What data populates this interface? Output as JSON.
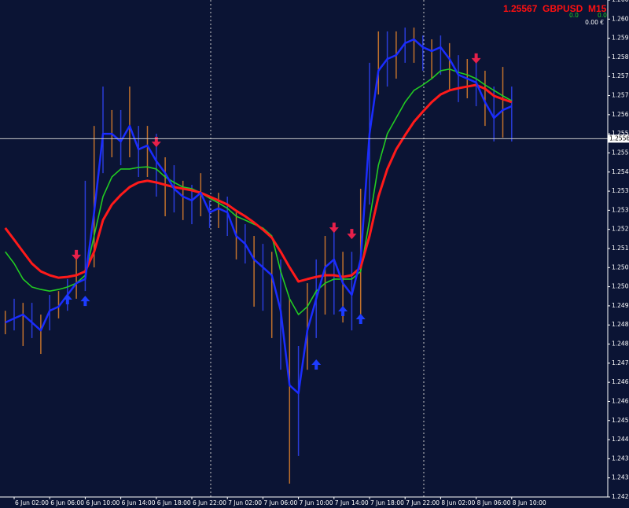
{
  "header": {
    "price": "1.25567",
    "symbol": "GBPUSD",
    "timeframe": "M15",
    "values": [
      "0.0",
      "0.0"
    ],
    "balance": "0.00 €"
  },
  "chart_data": {
    "type": "line",
    "categories": [
      null,
      "6 Jun 02:00",
      null,
      null,
      null,
      "6 Jun 06:00",
      null,
      null,
      null,
      "6 Jun 10:00",
      null,
      null,
      null,
      "6 Jun 14:00",
      null,
      null,
      null,
      "6 Jun 18:00",
      null,
      null,
      null,
      "6 Jun 22:00",
      null,
      null,
      null,
      "7 Jun 02:00",
      null,
      null,
      null,
      "7 Jun 06:00",
      null,
      null,
      null,
      "7 Jun 10:00",
      null,
      null,
      null,
      "7 Jun 14:00",
      null,
      null,
      null,
      "7 Jun 18:00",
      null,
      null,
      null,
      "7 Jun 22:00",
      null,
      null,
      null,
      "8 Jun 02:00",
      null,
      null,
      null,
      "8 Jun 06:00",
      null,
      null,
      null,
      "8 Jun 10:00"
    ],
    "ylim": [
      1.24255,
      1.26075
    ],
    "yticks": [
      1.24255,
      1.24325,
      1.24395,
      1.24465,
      1.24535,
      1.24605,
      1.24675,
      1.24745,
      1.24815,
      1.24885,
      1.24955,
      1.25025,
      1.25095,
      1.25165,
      1.25235,
      1.25305,
      1.25375,
      1.25445,
      1.25515,
      1.25585,
      1.25655,
      1.25725,
      1.25795,
      1.25865,
      1.25935,
      1.26005,
      1.26075
    ],
    "current_price": 1.25567,
    "bar_color": "#c0702c",
    "high": [
      1.24937,
      1.24981,
      1.24966,
      1.24966,
      1.24923,
      1.24995,
      1.25009,
      1.25053,
      1.25153,
      1.25413,
      1.25614,
      1.25758,
      1.25672,
      1.25672,
      1.25758,
      1.25614,
      1.25614,
      1.25585,
      1.25499,
      1.2547,
      1.25413,
      1.25398,
      1.25441,
      1.25341,
      1.25369,
      1.25355,
      1.25297,
      1.25254,
      1.25211,
      1.25182,
      1.25153,
      1.25125,
      1.24981,
      1.24808,
      1.25038,
      1.25125,
      1.25211,
      1.2524,
      1.25153,
      1.25153,
      1.25384,
      1.25845,
      1.2596,
      1.2596,
      1.2596,
      1.25974,
      1.25974,
      1.25945,
      1.25931,
      1.25945,
      1.25917,
      1.25873,
      1.25859,
      1.25859,
      1.25816,
      1.25758,
      1.2583,
      1.25758
    ],
    "low": [
      1.24851,
      1.24865,
      1.24808,
      1.24837,
      1.24779,
      1.24865,
      1.24909,
      1.24937,
      1.24981,
      1.25009,
      1.25096,
      1.25441,
      1.25499,
      1.2547,
      1.25499,
      1.25427,
      1.25427,
      1.25355,
      1.25283,
      1.25297,
      1.25269,
      1.25254,
      1.25283,
      1.2524,
      1.2524,
      1.25211,
      1.25125,
      1.2511,
      1.24952,
      1.24937,
      1.24837,
      1.24721,
      1.24304,
      1.24405,
      1.24721,
      1.24837,
      1.24923,
      1.24923,
      1.24894,
      1.24865,
      1.24923,
      1.25326,
      1.25729,
      1.25758,
      1.25787,
      1.25845,
      1.25845,
      1.25816,
      1.25787,
      1.25801,
      1.25744,
      1.25701,
      1.25715,
      1.25686,
      1.25614,
      1.25557,
      1.25571,
      1.25557
    ],
    "series": [
      {
        "color": "#22cc22",
        "values": [
          1.25153,
          1.2511,
          1.25053,
          1.25024,
          1.25015,
          1.25009,
          1.25015,
          1.25024,
          1.25038,
          1.25067,
          1.25211,
          1.25355,
          1.25427,
          1.25456,
          1.25456,
          1.25462,
          1.25464,
          1.25456,
          1.25427,
          1.25407,
          1.2539,
          1.25384,
          1.25369,
          1.25349,
          1.25332,
          1.25312,
          1.25283,
          1.25269,
          1.25254,
          1.2524,
          1.25211,
          1.25081,
          1.24981,
          1.24923,
          1.24952,
          1.25009,
          1.25038,
          1.25053,
          1.25053,
          1.25053,
          1.25081,
          1.25269,
          1.2547,
          1.25585,
          1.25643,
          1.25701,
          1.25744,
          1.25764,
          1.25787,
          1.25816,
          1.25822,
          1.2581,
          1.25801,
          1.25787,
          1.25764,
          1.25744,
          1.25724,
          1.25706
        ]
      },
      {
        "color": "#ff1a1a",
        "values": [
          1.2524,
          1.25197,
          1.25153,
          1.2511,
          1.25081,
          1.25067,
          1.25058,
          1.25061,
          1.25067,
          1.25081,
          1.25153,
          1.25269,
          1.25326,
          1.25361,
          1.2539,
          1.25407,
          1.25413,
          1.25407,
          1.25398,
          1.2539,
          1.25384,
          1.25378,
          1.25369,
          1.25355,
          1.25341,
          1.25326,
          1.25303,
          1.25283,
          1.2526,
          1.25234,
          1.25205,
          1.25153,
          1.25096,
          1.25044,
          1.25053,
          1.25061,
          1.25067,
          1.25067,
          1.25061,
          1.25067,
          1.25096,
          1.25211,
          1.25355,
          1.25456,
          1.25528,
          1.2558,
          1.25629,
          1.25666,
          1.25701,
          1.25729,
          1.25744,
          1.25752,
          1.25758,
          1.25764,
          1.2575,
          1.25724,
          1.25712,
          1.25701
        ]
      },
      {
        "color": "#1a2cff",
        "values": [
          1.24894,
          1.24909,
          1.24923,
          1.24894,
          1.24865,
          1.24937,
          1.24952,
          1.24995,
          1.25038,
          1.25053,
          1.25297,
          1.25585,
          1.25585,
          1.25557,
          1.25614,
          1.25528,
          1.25542,
          1.25485,
          1.25441,
          1.25384,
          1.25355,
          1.25341,
          1.25369,
          1.25297,
          1.25312,
          1.25297,
          1.25211,
          1.25182,
          1.25125,
          1.25096,
          1.25067,
          1.24937,
          1.24664,
          1.24635,
          1.24865,
          1.24981,
          1.25096,
          1.25125,
          1.25038,
          1.24995,
          1.25125,
          1.25585,
          1.25816,
          1.25859,
          1.25873,
          1.25917,
          1.25931,
          1.25902,
          1.25888,
          1.25902,
          1.25859,
          1.25801,
          1.25787,
          1.25773,
          1.25701,
          1.25643,
          1.25672,
          1.25686
        ]
      }
    ],
    "sell_arrows": {
      "color": "#e8204a",
      "values": [
        null,
        null,
        null,
        null,
        null,
        null,
        null,
        null,
        1.25125,
        null,
        null,
        null,
        null,
        null,
        null,
        null,
        null,
        1.25539,
        null,
        null,
        null,
        null,
        null,
        null,
        null,
        null,
        null,
        null,
        null,
        null,
        null,
        null,
        null,
        null,
        null,
        null,
        null,
        1.25225,
        null,
        1.25202,
        null,
        null,
        null,
        null,
        null,
        null,
        null,
        null,
        null,
        null,
        null,
        null,
        null,
        1.25845,
        null,
        null,
        null,
        null
      ]
    },
    "buy_arrows": {
      "color": "#1d3cff",
      "values": [
        null,
        null,
        null,
        null,
        null,
        null,
        null,
        1.24995,
        null,
        1.24989,
        null,
        null,
        null,
        null,
        null,
        null,
        null,
        null,
        null,
        null,
        null,
        null,
        null,
        null,
        null,
        null,
        null,
        null,
        null,
        null,
        null,
        null,
        null,
        null,
        null,
        1.24756,
        null,
        null,
        1.24952,
        null,
        1.24923,
        null,
        null,
        null,
        null,
        null,
        null,
        null,
        null,
        null,
        null,
        null,
        null,
        null,
        null,
        null,
        null,
        null
      ]
    }
  }
}
